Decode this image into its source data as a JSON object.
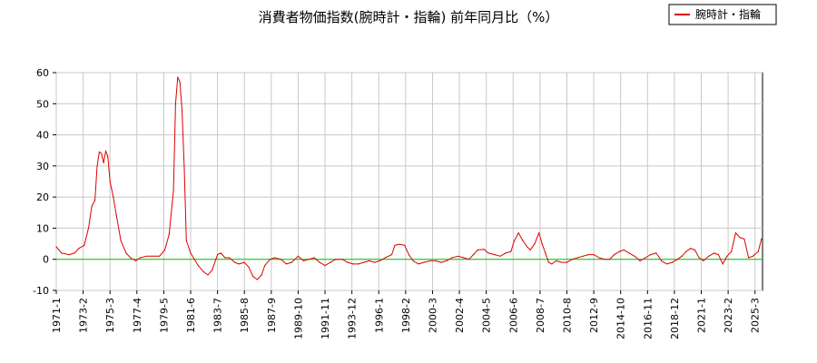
{
  "chart_data": {
    "type": "line",
    "title": "消費者物価指数(腕時計・指輪) 前年同月比（%）",
    "xlabel": "",
    "ylabel": "",
    "ylim": [
      -10,
      60
    ],
    "y_ticks": [
      "-10",
      "0",
      "10",
      "20",
      "30",
      "40",
      "50",
      "60"
    ],
    "x_tick_labels": [
      "1971-1",
      "1973-2",
      "1975-3",
      "1977-4",
      "1979-5",
      "1981-6",
      "1983-7",
      "1985-8",
      "1987-9",
      "1989-10",
      "1991-11",
      "1993-12",
      "1996-1",
      "1998-2",
      "2000-3",
      "2002-4",
      "2004-5",
      "2006-6",
      "2008-7",
      "2010-8",
      "2012-9",
      "2014-10",
      "2016-11",
      "2018-12",
      "2021-1",
      "2023-2",
      "2025-3"
    ],
    "grid": true,
    "legend_position": "top-right",
    "reference_line": 0,
    "series": [
      {
        "name": "腕時計・指輪",
        "color": "#dd0000",
        "points": [
          [
            "1971-01",
            4.0
          ],
          [
            "1971-06",
            2.0
          ],
          [
            "1972-01",
            1.5
          ],
          [
            "1972-06",
            2.0
          ],
          [
            "1972-10",
            3.5
          ],
          [
            "1973-03",
            4.5
          ],
          [
            "1973-07",
            10.0
          ],
          [
            "1973-10",
            17.0
          ],
          [
            "1974-01",
            19.0
          ],
          [
            "1974-03",
            30.0
          ],
          [
            "1974-05",
            34.5
          ],
          [
            "1974-07",
            34.0
          ],
          [
            "1974-09",
            31.0
          ],
          [
            "1974-11",
            34.8
          ],
          [
            "1975-01",
            33.0
          ],
          [
            "1975-03",
            25.0
          ],
          [
            "1975-06",
            20.0
          ],
          [
            "1975-09",
            14.0
          ],
          [
            "1976-01",
            6.0
          ],
          [
            "1976-06",
            2.0
          ],
          [
            "1976-10",
            0.5
          ],
          [
            "1977-03",
            -0.5
          ],
          [
            "1977-07",
            0.5
          ],
          [
            "1978-01",
            1.0
          ],
          [
            "1978-06",
            1.0
          ],
          [
            "1979-01",
            1.0
          ],
          [
            "1979-06",
            3.0
          ],
          [
            "1979-10",
            8.0
          ],
          [
            "1980-02",
            22.0
          ],
          [
            "1980-04",
            50.0
          ],
          [
            "1980-06",
            58.5
          ],
          [
            "1980-08",
            57.0
          ],
          [
            "1980-10",
            48.0
          ],
          [
            "1980-12",
            30.0
          ],
          [
            "1981-02",
            6.0
          ],
          [
            "1981-06",
            2.0
          ],
          [
            "1982-01",
            -2.0
          ],
          [
            "1982-06",
            -4.0
          ],
          [
            "1982-10",
            -5.0
          ],
          [
            "1983-02",
            -3.5
          ],
          [
            "1983-07",
            1.5
          ],
          [
            "1983-10",
            2.0
          ],
          [
            "1984-02",
            0.5
          ],
          [
            "1984-06",
            0.5
          ],
          [
            "1984-11",
            -1.0
          ],
          [
            "1985-03",
            -1.5
          ],
          [
            "1985-08",
            -1.0
          ],
          [
            "1985-12",
            -2.5
          ],
          [
            "1986-04",
            -5.5
          ],
          [
            "1986-08",
            -6.5
          ],
          [
            "1986-12",
            -5.0
          ],
          [
            "1987-03",
            -2.0
          ],
          [
            "1987-08",
            0.0
          ],
          [
            "1987-12",
            0.5
          ],
          [
            "1988-06",
            0.0
          ],
          [
            "1988-11",
            -1.5
          ],
          [
            "1989-04",
            -1.0
          ],
          [
            "1989-10",
            1.0
          ],
          [
            "1990-03",
            -0.5
          ],
          [
            "1990-08",
            0.0
          ],
          [
            "1991-01",
            0.5
          ],
          [
            "1991-06",
            -1.0
          ],
          [
            "1991-11",
            -2.0
          ],
          [
            "1992-04",
            -1.0
          ],
          [
            "1992-09",
            0.0
          ],
          [
            "1993-03",
            0.0
          ],
          [
            "1993-08",
            -1.0
          ],
          [
            "1994-01",
            -1.5
          ],
          [
            "1994-06",
            -1.5
          ],
          [
            "1994-11",
            -1.0
          ],
          [
            "1995-04",
            -0.5
          ],
          [
            "1995-09",
            -1.0
          ],
          [
            "1996-02",
            -0.5
          ],
          [
            "1996-07",
            0.5
          ],
          [
            "1997-01",
            1.5
          ],
          [
            "1997-04",
            4.5
          ],
          [
            "1997-08",
            4.8
          ],
          [
            "1998-01",
            4.5
          ],
          [
            "1998-05",
            1.5
          ],
          [
            "1998-09",
            -0.5
          ],
          [
            "1999-02",
            -1.5
          ],
          [
            "1999-07",
            -1.0
          ],
          [
            "2000-01",
            -0.5
          ],
          [
            "2000-06",
            -0.5
          ],
          [
            "2000-11",
            -1.0
          ],
          [
            "2001-04",
            -0.5
          ],
          [
            "2001-09",
            0.5
          ],
          [
            "2002-03",
            1.0
          ],
          [
            "2002-08",
            0.5
          ],
          [
            "2003-01",
            0.0
          ],
          [
            "2003-05",
            1.5
          ],
          [
            "2003-09",
            3.0
          ],
          [
            "2004-03",
            3.2
          ],
          [
            "2004-07",
            2.0
          ],
          [
            "2005-01",
            1.5
          ],
          [
            "2005-06",
            1.0
          ],
          [
            "2005-11",
            2.0
          ],
          [
            "2006-04",
            2.5
          ],
          [
            "2006-07",
            6.0
          ],
          [
            "2006-11",
            8.5
          ],
          [
            "2007-03",
            6.0
          ],
          [
            "2007-07",
            4.0
          ],
          [
            "2007-10",
            3.0
          ],
          [
            "2008-02",
            5.0
          ],
          [
            "2008-06",
            8.5
          ],
          [
            "2008-09",
            5.0
          ],
          [
            "2008-12",
            2.0
          ],
          [
            "2009-03",
            -1.0
          ],
          [
            "2009-06",
            -1.5
          ],
          [
            "2009-10",
            -0.5
          ],
          [
            "2010-03",
            -1.0
          ],
          [
            "2010-08",
            -1.0
          ],
          [
            "2011-01",
            0.0
          ],
          [
            "2011-06",
            0.5
          ],
          [
            "2011-11",
            1.0
          ],
          [
            "2012-04",
            1.5
          ],
          [
            "2012-09",
            1.5
          ],
          [
            "2013-02",
            0.5
          ],
          [
            "2013-07",
            0.0
          ],
          [
            "2013-12",
            0.0
          ],
          [
            "2014-04",
            1.5
          ],
          [
            "2014-09",
            2.5
          ],
          [
            "2015-01",
            3.0
          ],
          [
            "2015-06",
            2.0
          ],
          [
            "2015-11",
            1.0
          ],
          [
            "2016-04",
            -0.5
          ],
          [
            "2016-09",
            0.5
          ],
          [
            "2017-02",
            1.5
          ],
          [
            "2017-07",
            2.0
          ],
          [
            "2017-12",
            -0.5
          ],
          [
            "2018-05",
            -1.5
          ],
          [
            "2018-10",
            -1.0
          ],
          [
            "2019-03",
            0.0
          ],
          [
            "2019-07",
            1.0
          ],
          [
            "2019-11",
            2.5
          ],
          [
            "2020-03",
            3.5
          ],
          [
            "2020-07",
            3.0
          ],
          [
            "2020-11",
            0.5
          ],
          [
            "2021-03",
            -0.5
          ],
          [
            "2021-08",
            1.0
          ],
          [
            "2022-01",
            2.0
          ],
          [
            "2022-05",
            1.5
          ],
          [
            "2022-09",
            -1.5
          ],
          [
            "2023-01",
            1.0
          ],
          [
            "2023-05",
            2.5
          ],
          [
            "2023-09",
            8.5
          ],
          [
            "2024-01",
            7.0
          ],
          [
            "2024-05",
            6.5
          ],
          [
            "2024-09",
            0.5
          ],
          [
            "2025-01",
            1.0
          ],
          [
            "2025-06",
            2.5
          ],
          [
            "2025-09",
            6.5
          ]
        ]
      }
    ]
  }
}
